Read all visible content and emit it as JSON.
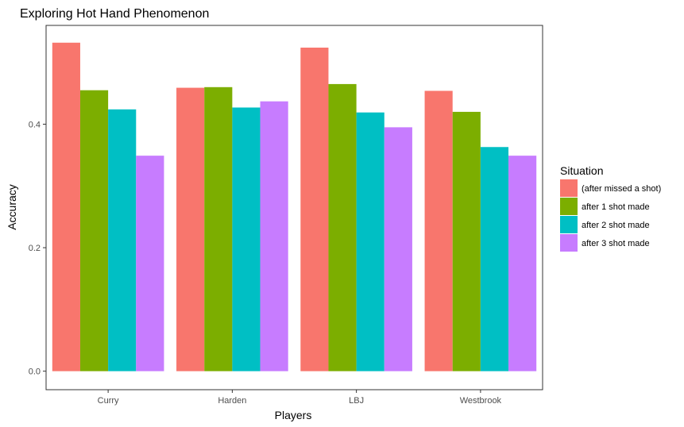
{
  "chart_data": {
    "type": "bar",
    "title": "Exploring Hot Hand Phenomenon",
    "xlabel": "Players",
    "ylabel": "Accuracy",
    "categories": [
      "Curry",
      "Harden",
      "LBJ",
      "Westbrook"
    ],
    "ylim": [
      -0.03,
      0.56
    ],
    "yticks": [
      0.0,
      0.2,
      0.4
    ],
    "ytick_labels": [
      "0.0",
      "0.2",
      "0.4"
    ],
    "legend_title": "Situation",
    "legend_position": "right",
    "grid": false,
    "series": [
      {
        "name": "(after missed a shot)",
        "color": "#F8766D",
        "values": [
          0.532,
          0.459,
          0.524,
          0.454
        ]
      },
      {
        "name": "after 1 shot made",
        "color": "#7CAE00",
        "values": [
          0.455,
          0.46,
          0.465,
          0.42
        ]
      },
      {
        "name": "after 2 shot made",
        "color": "#00BFC4",
        "values": [
          0.424,
          0.427,
          0.419,
          0.363
        ]
      },
      {
        "name": "after 3 shot made",
        "color": "#C77CFF",
        "values": [
          0.349,
          0.437,
          0.395,
          0.349
        ]
      }
    ]
  }
}
